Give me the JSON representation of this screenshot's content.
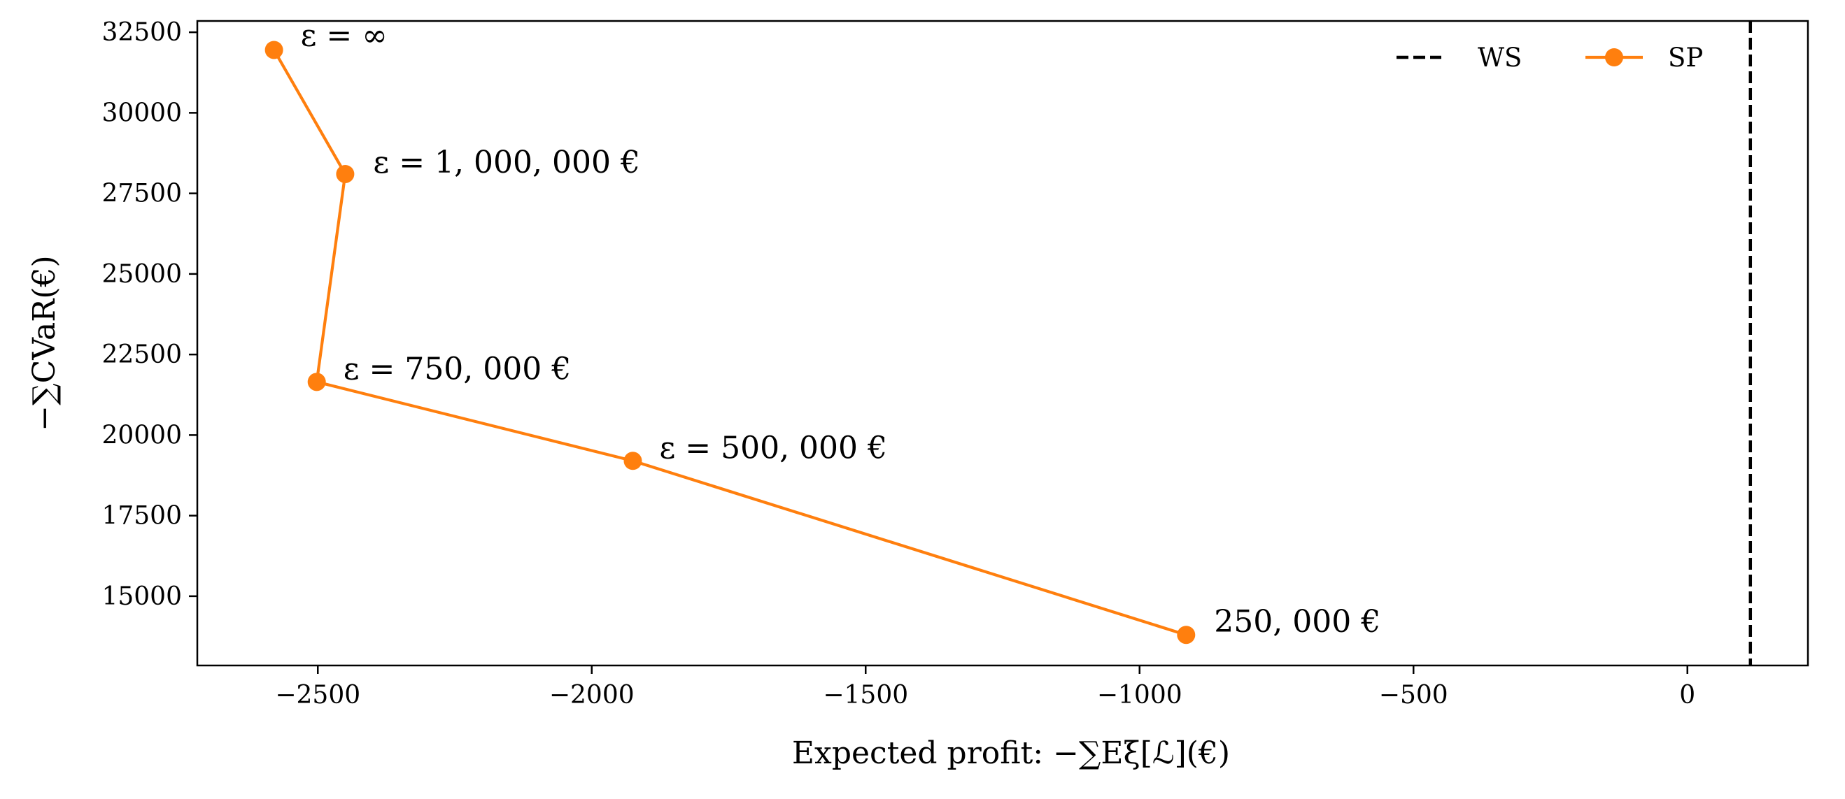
{
  "chart_data": {
    "type": "line",
    "title": "",
    "xlabel": "Expected profit: −∑Eξ[ℒ](€)",
    "ylabel": "−∑CVaR(€)",
    "xlim": [
      -2720,
      220
    ],
    "ylim": [
      12850,
      32850
    ],
    "xticks": [
      -2500,
      -2000,
      -1500,
      -1000,
      -500,
      0
    ],
    "xtick_labels": [
      "−2500",
      "−2000",
      "−1500",
      "−1000",
      "−500",
      "0"
    ],
    "yticks": [
      15000,
      17500,
      20000,
      22500,
      25000,
      27500,
      30000,
      32500
    ],
    "ytick_labels": [
      "15000",
      "17500",
      "20000",
      "22500",
      "25000",
      "27500",
      "30000",
      "32500"
    ],
    "grid": false,
    "legend_position": "top-right",
    "series": [
      {
        "name": "SP",
        "color": "#ff7f0e",
        "style": "solid-with-markers",
        "x": [
          -2580,
          -2450,
          -2502,
          -1925,
          -915
        ],
        "y": [
          31950,
          28100,
          21650,
          19200,
          13800
        ],
        "labels": [
          "ε = ∞",
          "ε = 1, 000, 000 €",
          "ε = 750, 000 €",
          "ε = 500, 000 €",
          "250, 000 €"
        ]
      }
    ],
    "reference_lines": [
      {
        "name": "WS",
        "orientation": "vertical",
        "x": 115,
        "color": "#000000",
        "style": "dashed"
      }
    ]
  }
}
